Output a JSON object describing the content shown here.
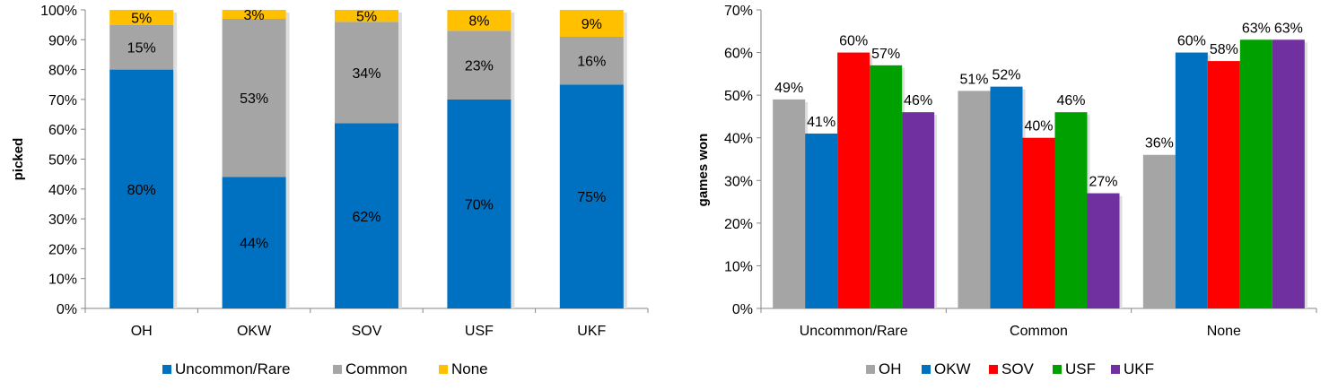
{
  "chart_data": [
    {
      "type": "bar",
      "stacked": true,
      "title": "",
      "xlabel": "",
      "ylabel": "picked",
      "ylim": [
        0,
        1
      ],
      "y_ticks": [
        "0%",
        "10%",
        "20%",
        "30%",
        "40%",
        "50%",
        "60%",
        "70%",
        "80%",
        "90%",
        "100%"
      ],
      "categories": [
        "OH",
        "OKW",
        "SOV",
        "USF",
        "UKF"
      ],
      "series": [
        {
          "name": "Uncommon/Rare",
          "color": "#0070C0",
          "values": [
            0.8,
            0.44,
            0.62,
            0.7,
            0.75
          ],
          "labels": [
            "80%",
            "44%",
            "62%",
            "70%",
            "75%"
          ]
        },
        {
          "name": "Common",
          "color": "#A5A5A5",
          "values": [
            0.15,
            0.53,
            0.34,
            0.23,
            0.16
          ],
          "labels": [
            "15%",
            "53%",
            "34%",
            "23%",
            "16%"
          ]
        },
        {
          "name": "None",
          "color": "#FFC000",
          "values": [
            0.05,
            0.03,
            0.05,
            0.08,
            0.09
          ],
          "labels": [
            "5%",
            "3%",
            "5%",
            "8%",
            "9%"
          ]
        }
      ],
      "grid": false,
      "legend": "bottom"
    },
    {
      "type": "bar",
      "stacked": false,
      "title": "",
      "xlabel": "",
      "ylabel": "games won",
      "ylim": [
        0,
        0.7
      ],
      "y_ticks": [
        "0%",
        "10%",
        "20%",
        "30%",
        "40%",
        "50%",
        "60%",
        "70%"
      ],
      "categories": [
        "Uncommon/Rare",
        "Common",
        "None"
      ],
      "series": [
        {
          "name": "OH",
          "color": "#A5A5A5",
          "values": [
            0.49,
            0.51,
            0.36
          ],
          "labels": [
            "49%",
            "51%",
            "36%"
          ]
        },
        {
          "name": "OKW",
          "color": "#0070C0",
          "values": [
            0.41,
            0.52,
            0.6
          ],
          "labels": [
            "41%",
            "52%",
            "60%"
          ]
        },
        {
          "name": "SOV",
          "color": "#FF0000",
          "values": [
            0.6,
            0.4,
            0.58
          ],
          "labels": [
            "60%",
            "40%",
            "58%"
          ]
        },
        {
          "name": "USF",
          "color": "#00A000",
          "values": [
            0.57,
            0.46,
            0.63
          ],
          "labels": [
            "57%",
            "46%",
            "63%"
          ]
        },
        {
          "name": "UKF",
          "color": "#7030A0",
          "values": [
            0.46,
            0.27,
            0.63
          ],
          "labels": [
            "46%",
            "27%",
            "63%"
          ]
        }
      ],
      "grid": false,
      "legend": "bottom"
    }
  ]
}
